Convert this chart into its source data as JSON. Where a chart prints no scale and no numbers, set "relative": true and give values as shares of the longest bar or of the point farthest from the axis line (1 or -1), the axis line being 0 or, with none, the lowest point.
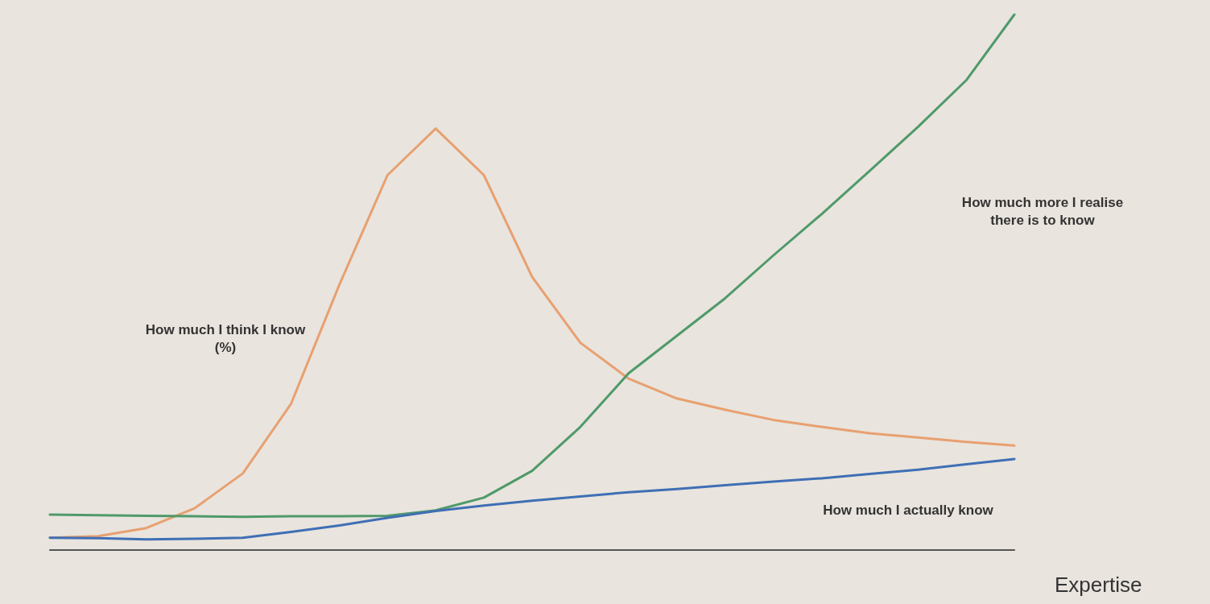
{
  "chart_data": {
    "type": "line",
    "relative": true,
    "xlabel": "Expertise",
    "marker": "none",
    "line_style": "solid",
    "categories": [
      null,
      null,
      null,
      null,
      null,
      null,
      null,
      null,
      null,
      null,
      null,
      null,
      null,
      null,
      null,
      null,
      null,
      null,
      null,
      null,
      null
    ],
    "series": [
      {
        "color": "#e8a070",
        "values": [
          0.023,
          0.026,
          0.041,
          0.078,
          0.143,
          0.273,
          0.495,
          0.7,
          0.787,
          0.7,
          0.51,
          0.387,
          0.32,
          0.283,
          0.262,
          0.243,
          0.23,
          0.218,
          0.21,
          0.202,
          0.195
        ]
      },
      {
        "color": "#4f9a6a",
        "values": [
          0.066,
          0.065,
          0.064,
          0.063,
          0.062,
          0.063,
          0.063,
          0.064,
          0.074,
          0.098,
          0.148,
          0.23,
          0.33,
          0.4,
          0.47,
          0.55,
          0.627,
          0.708,
          0.79,
          0.877,
          1
        ]
      },
      {
        "color": "#3f6fb5",
        "values": [
          0.023,
          0.022,
          0.02,
          0.021,
          0.023,
          0.034,
          0.046,
          0.06,
          0.073,
          0.083,
          0.092,
          0.1,
          0.108,
          0.114,
          0.121,
          0.128,
          0.134,
          0.142,
          0.15,
          0.16,
          0.17
        ]
      }
    ],
    "annotations": [
      "How much I think I know (%)",
      "How much more I realise there is to know",
      "How much I actually know"
    ]
  }
}
